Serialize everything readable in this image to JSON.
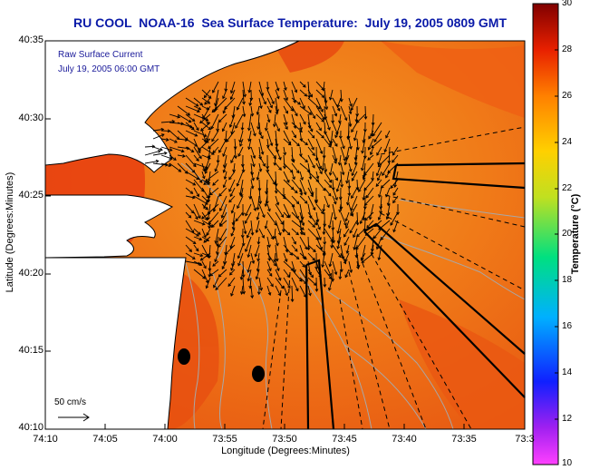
{
  "title": "RU COOL  NOAA-16  Sea Surface Temperature:  July 19, 2005 0809 GMT",
  "legend": {
    "line1": "Raw Surface Current",
    "line2": "July 19, 2005 06:00 GMT"
  },
  "scale_label": "50 cm/s",
  "axes": {
    "xlabel": "Longitude (Degrees:Minutes)",
    "ylabel": "Latitude (Degrees:Minutes)",
    "x_ticks": [
      "74:10",
      "74:05",
      "74:00",
      "73:55",
      "73:50",
      "73:45",
      "73:40",
      "73:35",
      "73:3"
    ],
    "y_ticks": [
      "40:35",
      "40:30",
      "40:25",
      "40:20",
      "40:15",
      "40:10"
    ]
  },
  "colorbar": {
    "label": "Temperature (°C)",
    "ticks": [
      "30",
      "28",
      "26",
      "24",
      "22",
      "20",
      "18",
      "16",
      "14",
      "12",
      "10"
    ]
  },
  "colors": {
    "title": "#0a1aa8",
    "ocean_warm": "#f07a18",
    "ocean_hot": "#e84a10",
    "land": "#ffffff"
  }
}
